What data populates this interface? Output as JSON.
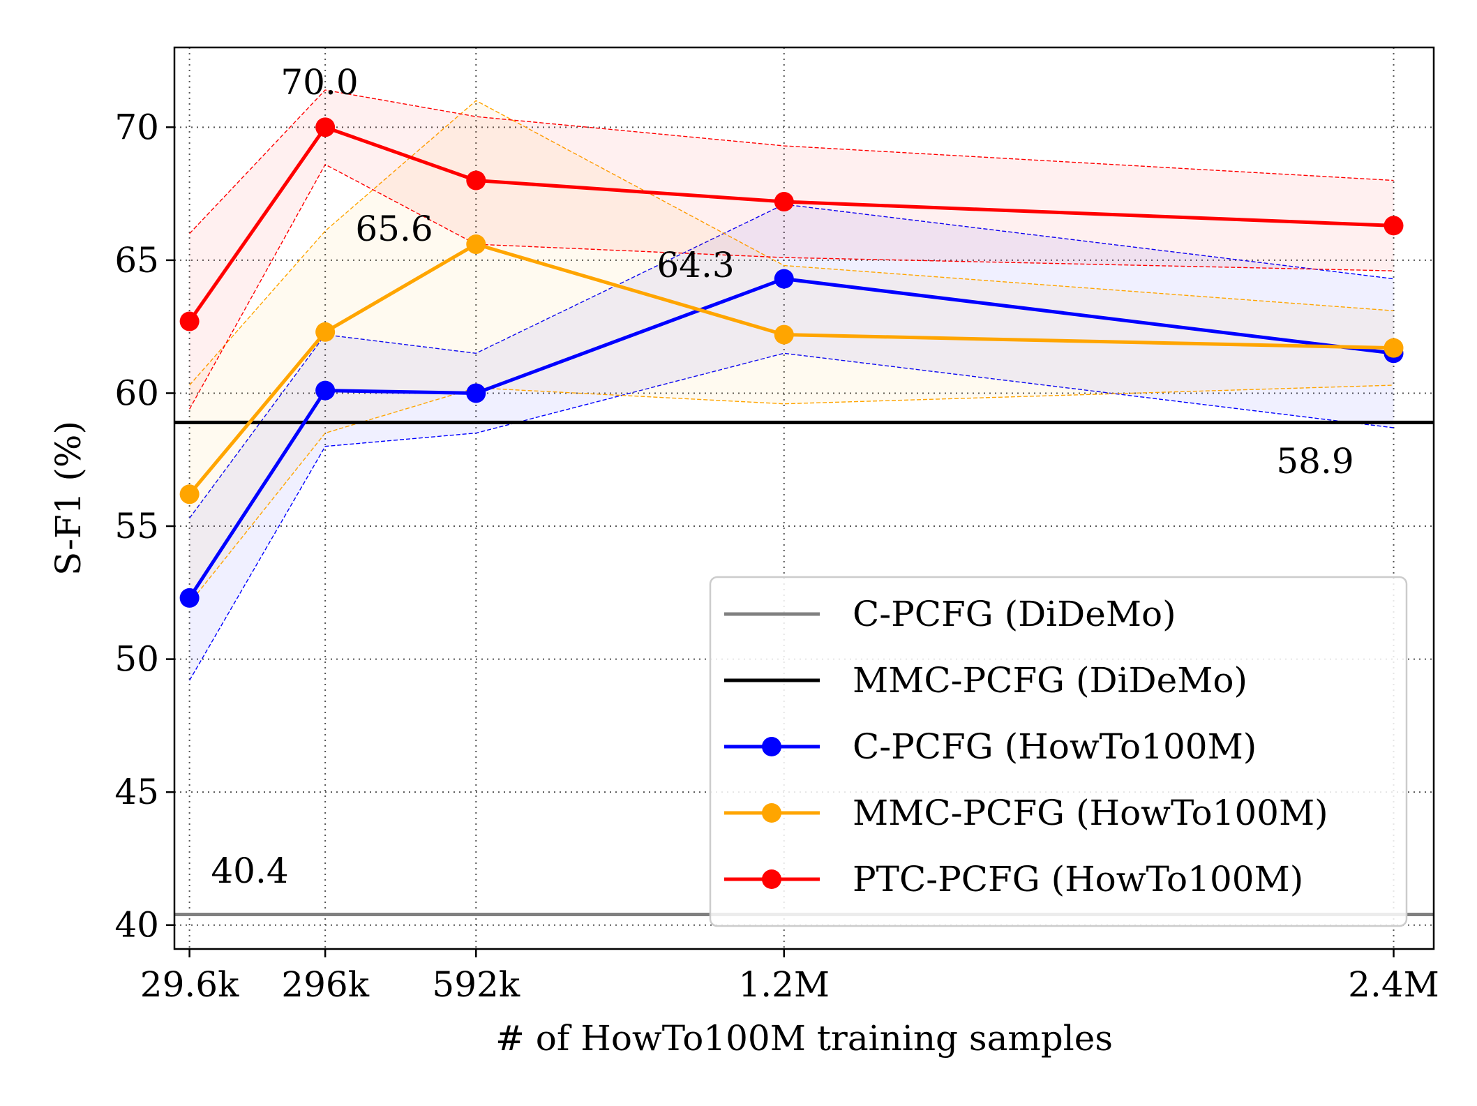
{
  "chart_data": {
    "type": "line",
    "xlabel": "# of HowTo100M training samples",
    "ylabel": "S-F1 (%)",
    "ylim": [
      39.1,
      73.0
    ],
    "x_tick_labels": [
      "29.6k",
      "296k",
      "592k",
      "1.2M",
      "2.4M"
    ],
    "x_tick_positions": [
      0.188,
      1.88,
      3.76,
      7.6,
      15.2
    ],
    "xlim": [
      0.0,
      15.7
    ],
    "y_ticks": [
      40,
      45,
      50,
      55,
      60,
      65,
      70
    ],
    "grid": true,
    "legend_position": "lower-right",
    "hlines": [
      {
        "name": "C-PCFG (DiDeMo)",
        "value": 40.4,
        "color": "#808080",
        "label": "40.4"
      },
      {
        "name": "MMC-PCFG (DiDeMo)",
        "value": 58.9,
        "color": "#000000",
        "label": "58.9"
      }
    ],
    "series": [
      {
        "name": "C-PCFG (HowTo100M)",
        "color": "#0000ff",
        "values": [
          52.3,
          60.1,
          60.0,
          64.3,
          61.5
        ],
        "upper": [
          55.3,
          62.2,
          61.5,
          67.1,
          64.3
        ],
        "lower": [
          49.2,
          58.0,
          58.5,
          61.5,
          58.7
        ],
        "peak_label": "64.3"
      },
      {
        "name": "MMC-PCFG (HowTo100M)",
        "color": "#ffa500",
        "values": [
          56.2,
          62.3,
          65.6,
          62.2,
          61.7
        ],
        "upper": [
          60.3,
          66.1,
          71.0,
          64.8,
          63.1
        ],
        "lower": [
          52.1,
          58.5,
          60.2,
          59.6,
          60.3
        ],
        "peak_label": "65.6"
      },
      {
        "name": "PTC-PCFG (HowTo100M)",
        "color": "#ff0000",
        "values": [
          62.7,
          70.0,
          68.0,
          67.2,
          66.3
        ],
        "upper": [
          66.0,
          71.4,
          70.4,
          69.3,
          68.0
        ],
        "lower": [
          59.4,
          68.6,
          65.6,
          65.1,
          64.6
        ],
        "peak_label": "70.0"
      }
    ]
  }
}
